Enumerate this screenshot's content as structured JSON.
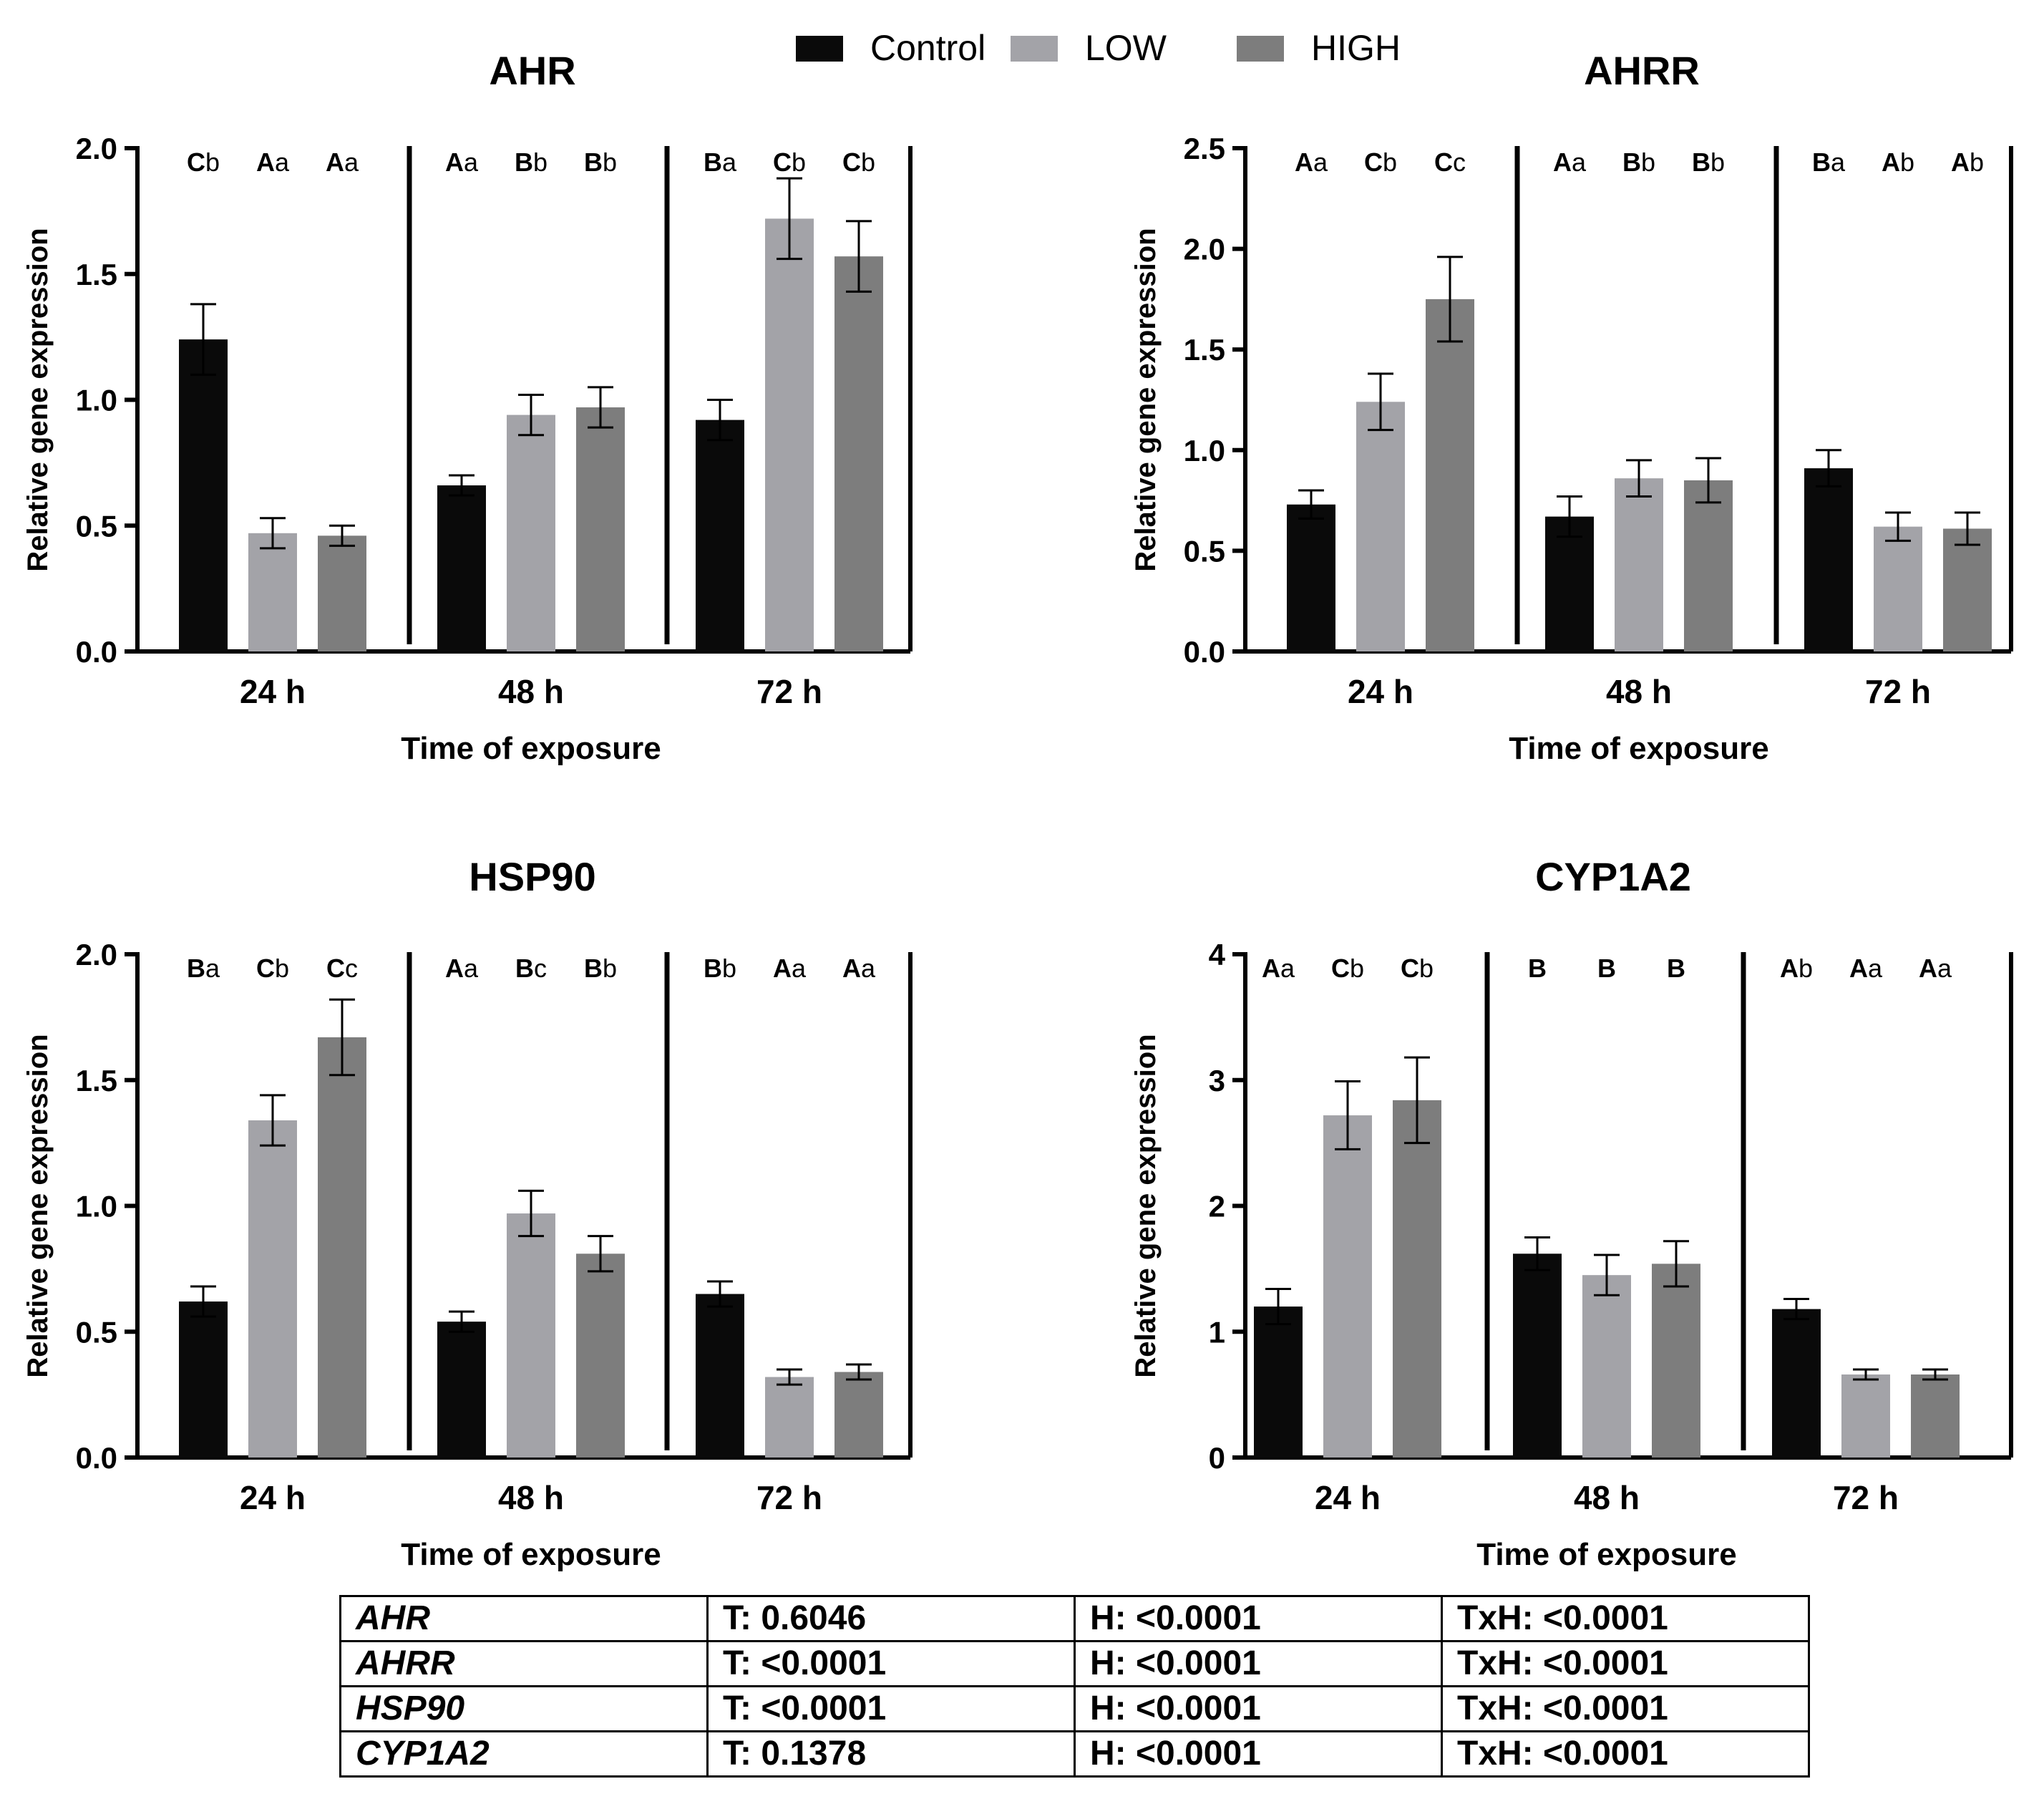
{
  "legend": {
    "items": [
      {
        "label": "Control",
        "color": "#0a0a0a"
      },
      {
        "label": "LOW",
        "color": "#a3a3a8"
      },
      {
        "label": "HIGH",
        "color": "#7d7d7d"
      }
    ]
  },
  "chart_data": [
    {
      "type": "bar",
      "title": "AHR",
      "xlabel": "Time of exposure",
      "ylabel": "Relative gene expression",
      "categories": [
        "24 h",
        "48 h",
        "72 h"
      ],
      "ylim": [
        0,
        2.0
      ],
      "yticks": [
        "0.0",
        "0.5",
        "1.0",
        "1.5",
        "2.0"
      ],
      "series": [
        {
          "name": "Control",
          "values": [
            1.24,
            0.66,
            0.92
          ],
          "errors": [
            0.14,
            0.04,
            0.08
          ]
        },
        {
          "name": "LOW",
          "values": [
            0.47,
            0.94,
            1.72
          ],
          "errors": [
            0.06,
            0.08,
            0.16
          ]
        },
        {
          "name": "HIGH",
          "values": [
            0.46,
            0.97,
            1.57
          ],
          "errors": [
            0.04,
            0.08,
            0.14
          ]
        }
      ],
      "significance": [
        [
          [
            "C",
            "b"
          ],
          [
            "A",
            "a"
          ],
          [
            "A",
            "a"
          ]
        ],
        [
          [
            "A",
            "a"
          ],
          [
            "B",
            "b"
          ],
          [
            "B",
            "b"
          ]
        ],
        [
          [
            "B",
            "a"
          ],
          [
            "C",
            "b"
          ],
          [
            "C",
            "b"
          ]
        ]
      ]
    },
    {
      "type": "bar",
      "title": "AHRR",
      "xlabel": "Time of exposure",
      "ylabel": "Relative gene expression",
      "categories": [
        "24 h",
        "48 h",
        "72 h"
      ],
      "ylim": [
        0,
        2.5
      ],
      "yticks": [
        "0.0",
        "0.5",
        "1.0",
        "1.5",
        "2.0",
        "2.5"
      ],
      "series": [
        {
          "name": "Control",
          "values": [
            0.73,
            0.67,
            0.91
          ],
          "errors": [
            0.07,
            0.1,
            0.09
          ]
        },
        {
          "name": "LOW",
          "values": [
            1.24,
            0.86,
            0.62
          ],
          "errors": [
            0.14,
            0.09,
            0.07
          ]
        },
        {
          "name": "HIGH",
          "values": [
            1.75,
            0.85,
            0.61
          ],
          "errors": [
            0.21,
            0.11,
            0.08
          ]
        }
      ],
      "significance": [
        [
          [
            "A",
            "a"
          ],
          [
            "C",
            "b"
          ],
          [
            "C",
            "c"
          ]
        ],
        [
          [
            "A",
            "a"
          ],
          [
            "B",
            "b"
          ],
          [
            "B",
            "b"
          ]
        ],
        [
          [
            "B",
            "a"
          ],
          [
            "A",
            "b"
          ],
          [
            "A",
            "b"
          ]
        ]
      ]
    },
    {
      "type": "bar",
      "title": "HSP90",
      "xlabel": "Time of exposure",
      "ylabel": "Relative gene expression",
      "categories": [
        "24 h",
        "48 h",
        "72 h"
      ],
      "ylim": [
        0,
        2.0
      ],
      "yticks": [
        "0.0",
        "0.5",
        "1.0",
        "1.5",
        "2.0"
      ],
      "series": [
        {
          "name": "Control",
          "values": [
            0.62,
            0.54,
            0.65
          ],
          "errors": [
            0.06,
            0.04,
            0.05
          ]
        },
        {
          "name": "LOW",
          "values": [
            1.34,
            0.97,
            0.32
          ],
          "errors": [
            0.1,
            0.09,
            0.03
          ]
        },
        {
          "name": "HIGH",
          "values": [
            1.67,
            0.81,
            0.34
          ],
          "errors": [
            0.15,
            0.07,
            0.03
          ]
        }
      ],
      "significance": [
        [
          [
            "B",
            "a"
          ],
          [
            "C",
            "b"
          ],
          [
            "C",
            "c"
          ]
        ],
        [
          [
            "A",
            "a"
          ],
          [
            "B",
            "c"
          ],
          [
            "B",
            "b"
          ]
        ],
        [
          [
            "B",
            "b"
          ],
          [
            "A",
            "a"
          ],
          [
            "A",
            "a"
          ]
        ]
      ]
    },
    {
      "type": "bar",
      "title": "CYP1A2",
      "xlabel": "Time of exposure",
      "ylabel": "Relative gene expression",
      "categories": [
        "24 h",
        "48 h",
        "72 h"
      ],
      "ylim": [
        0,
        4
      ],
      "yticks": [
        "0",
        "1",
        "2",
        "3",
        "4"
      ],
      "series": [
        {
          "name": "Control",
          "values": [
            1.2,
            1.62,
            1.18
          ],
          "errors": [
            0.14,
            0.13,
            0.08
          ]
        },
        {
          "name": "LOW",
          "values": [
            2.72,
            1.45,
            0.66
          ],
          "errors": [
            0.27,
            0.16,
            0.04
          ]
        },
        {
          "name": "HIGH",
          "values": [
            2.84,
            1.54,
            0.66
          ],
          "errors": [
            0.34,
            0.18,
            0.04
          ]
        }
      ],
      "significance": [
        [
          [
            "A",
            "a"
          ],
          [
            "C",
            "b"
          ],
          [
            "C",
            "b"
          ]
        ],
        [
          [
            "B",
            ""
          ],
          [
            "B",
            ""
          ],
          [
            "B",
            ""
          ]
        ],
        [
          [
            "A",
            "b"
          ],
          [
            "A",
            "a"
          ],
          [
            "A",
            "a"
          ]
        ]
      ]
    }
  ],
  "stats_table": {
    "rows": [
      {
        "gene": "AHR",
        "t": "T: 0.6046",
        "h": "H: <0.0001",
        "txh": "TxH: <0.0001"
      },
      {
        "gene": "AHRR",
        "t": "T: <0.0001",
        "h": "H: <0.0001",
        "txh": "TxH: <0.0001"
      },
      {
        "gene": "HSP90",
        "t": "T: <0.0001",
        "h": "H: <0.0001",
        "txh": "TxH: <0.0001"
      },
      {
        "gene": "CYP1A2",
        "t": "T: 0.1378",
        "h": "H: <0.0001",
        "txh": "TxH: <0.0001"
      }
    ]
  }
}
